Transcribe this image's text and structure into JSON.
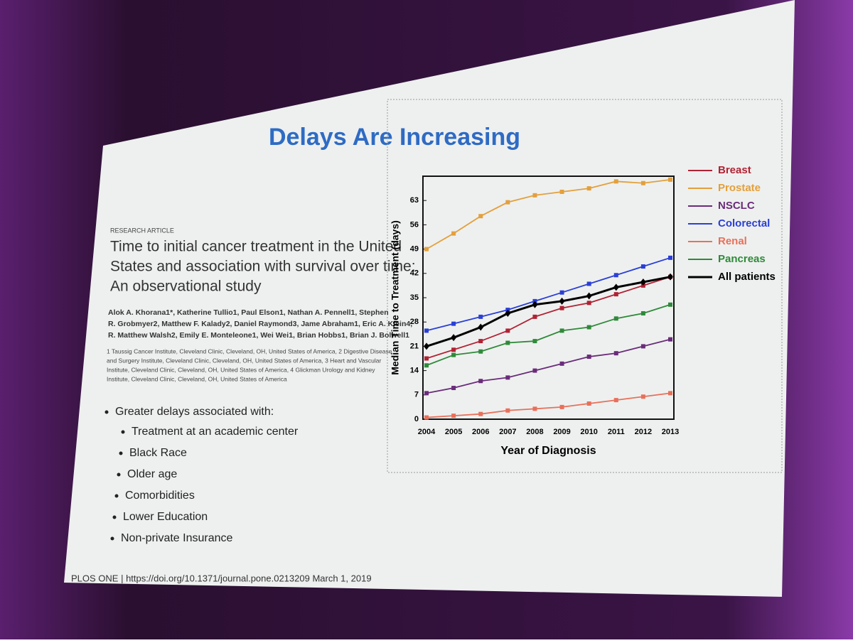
{
  "slide": {
    "title": "Delays Are Increasing",
    "kicker": "RESEARCH ARTICLE",
    "paper_title": [
      "Time to initial cancer treatment in the United",
      "States and association with survival over time:",
      "An observational study"
    ],
    "authors": [
      "Alok A. Khorana1*, Katherine Tullio1, Paul Elson1, Nathan A. Pennell1, Stephen",
      "R. Grobmyer2, Matthew F. Kalady2, Daniel Raymond3, Jame Abraham1, Eric A. Klein4,",
      "R. Matthew Walsh2, Emily E. Monteleone1, Wei Wei1, Brian Hobbs1, Brian J. Bolwell1"
    ],
    "affiliations": [
      "1 Taussig Cancer Institute, Cleveland Clinic, Cleveland, OH, United States of America, 2 Digestive Disease",
      "and Surgery Institute, Cleveland Clinic, Cleveland, OH, United States of America, 3 Heart and Vascular",
      "Institute, Cleveland Clinic, Cleveland, OH, United States of America, 4 Glickman Urology and Kidney",
      "Institute, Cleveland Clinic, Cleveland, OH, United States of America"
    ],
    "bullet_head": "Greater delays associated with:",
    "bullets": [
      "Treatment at an academic center",
      "Black Race",
      "Older age",
      "Comorbidities",
      "Lower Education",
      "Non-private Insurance"
    ],
    "footer": "PLOS ONE | https://doi.org/10.1371/journal.pone.0213209 March 1, 2019"
  },
  "chart_data": {
    "type": "line",
    "x_label": "Year of Diagnosis",
    "y_label": "Median Time to Treatment (days)",
    "categories": [
      "2004",
      "2005",
      "2006",
      "2007",
      "2008",
      "2009",
      "2010",
      "2011",
      "2012",
      "2013"
    ],
    "ylim": [
      0,
      70
    ],
    "yticks": [
      0,
      7,
      14,
      21,
      28,
      35,
      42,
      49,
      56,
      63
    ],
    "legend": "right",
    "series": [
      {
        "name": "Breast",
        "color": "#b22234",
        "values": [
          17.5,
          20,
          22.5,
          25.5,
          29.5,
          32,
          33.5,
          36,
          38.5,
          41
        ]
      },
      {
        "name": "Prostate",
        "color": "#e3a03c",
        "values": [
          49,
          53.5,
          58.5,
          62.5,
          64.5,
          65.5,
          66.5,
          68.5,
          68,
          69
        ]
      },
      {
        "name": "NSCLC",
        "color": "#6a2c7a",
        "values": [
          7.5,
          9,
          11,
          12,
          14,
          16,
          18,
          19,
          21,
          23
        ]
      },
      {
        "name": "Colorectal",
        "color": "#2a3fd6",
        "values": [
          25.5,
          27.5,
          29.5,
          31.5,
          34,
          36.5,
          39,
          41.5,
          44,
          46.5
        ]
      },
      {
        "name": "Renal",
        "color": "#e8705a",
        "values": [
          0.5,
          1,
          1.5,
          2.5,
          3,
          3.5,
          4.5,
          5.5,
          6.5,
          7.5
        ]
      },
      {
        "name": "Pancreas",
        "color": "#2f8a3a",
        "values": [
          15.5,
          18.5,
          19.5,
          22,
          22.5,
          25.5,
          26.5,
          29,
          30.5,
          33
        ]
      },
      {
        "name": "All patients",
        "color": "#000000",
        "marker": "diamond",
        "values": [
          21,
          23.5,
          26.5,
          30.5,
          33,
          34,
          35.5,
          38,
          39.5,
          41
        ]
      }
    ]
  }
}
